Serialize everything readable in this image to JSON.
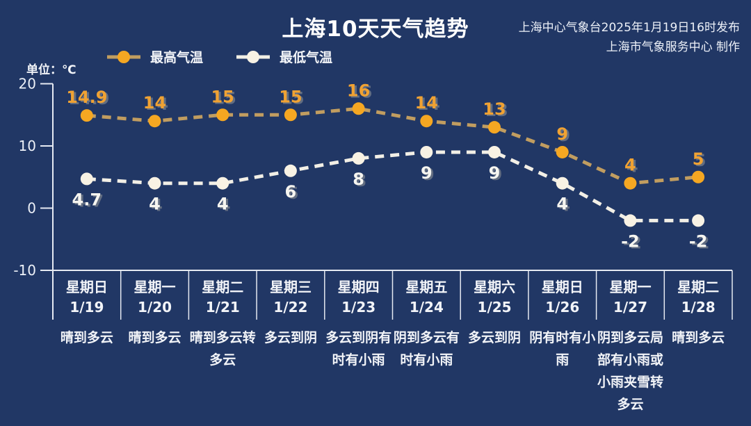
{
  "header": {
    "title": "上海10天天气趋势",
    "publisher_line1": "上海中心气象台2025年1月19日16时发布",
    "publisher_line2": "上海市气象服务中心 制作"
  },
  "unit_label": "单位：℃",
  "colors": {
    "background": "#213765",
    "high_line": "#C19D60",
    "high_marker": "#F5A722",
    "high_label": "#F0A233",
    "low_line": "#F2EFE6",
    "low_marker": "#F8F2E4",
    "low_label": "#F6F5F0",
    "axis": "#E6EAF2",
    "text": "#F2F4F8"
  },
  "chart_data": {
    "type": "line",
    "title": "上海10天天气趋势",
    "unit": "℃",
    "ylim": [
      -10,
      20
    ],
    "yticks": [
      20,
      10,
      0,
      -10
    ],
    "grid": false,
    "legend_position": "top-left",
    "line_style": "dashed",
    "categories": [
      {
        "weekday": "星期日",
        "date": "1/19",
        "weather": "晴到多云"
      },
      {
        "weekday": "星期一",
        "date": "1/20",
        "weather": "晴到多云"
      },
      {
        "weekday": "星期二",
        "date": "1/21",
        "weather": "晴到多云转多云"
      },
      {
        "weekday": "星期三",
        "date": "1/22",
        "weather": "多云到阴"
      },
      {
        "weekday": "星期四",
        "date": "1/23",
        "weather": "多云到阴有时有小雨"
      },
      {
        "weekday": "星期五",
        "date": "1/24",
        "weather": "阴到多云有时有小雨"
      },
      {
        "weekday": "星期六",
        "date": "1/25",
        "weather": "多云到阴"
      },
      {
        "weekday": "星期日",
        "date": "1/26",
        "weather": "阴有时有小雨"
      },
      {
        "weekday": "星期一",
        "date": "1/27",
        "weather": "阴到多云局部有小雨或小雨夹雪转多云"
      },
      {
        "weekday": "星期二",
        "date": "1/28",
        "weather": "晴到多云"
      }
    ],
    "series": [
      {
        "name": "最高气温",
        "key": "high-temp",
        "values": [
          14.9,
          14,
          15,
          15,
          16,
          14,
          13,
          9,
          4,
          5
        ]
      },
      {
        "name": "最低气温",
        "key": "low-temp",
        "values": [
          4.7,
          4,
          4,
          6,
          8,
          9,
          9,
          4,
          -2,
          -2
        ]
      }
    ]
  }
}
